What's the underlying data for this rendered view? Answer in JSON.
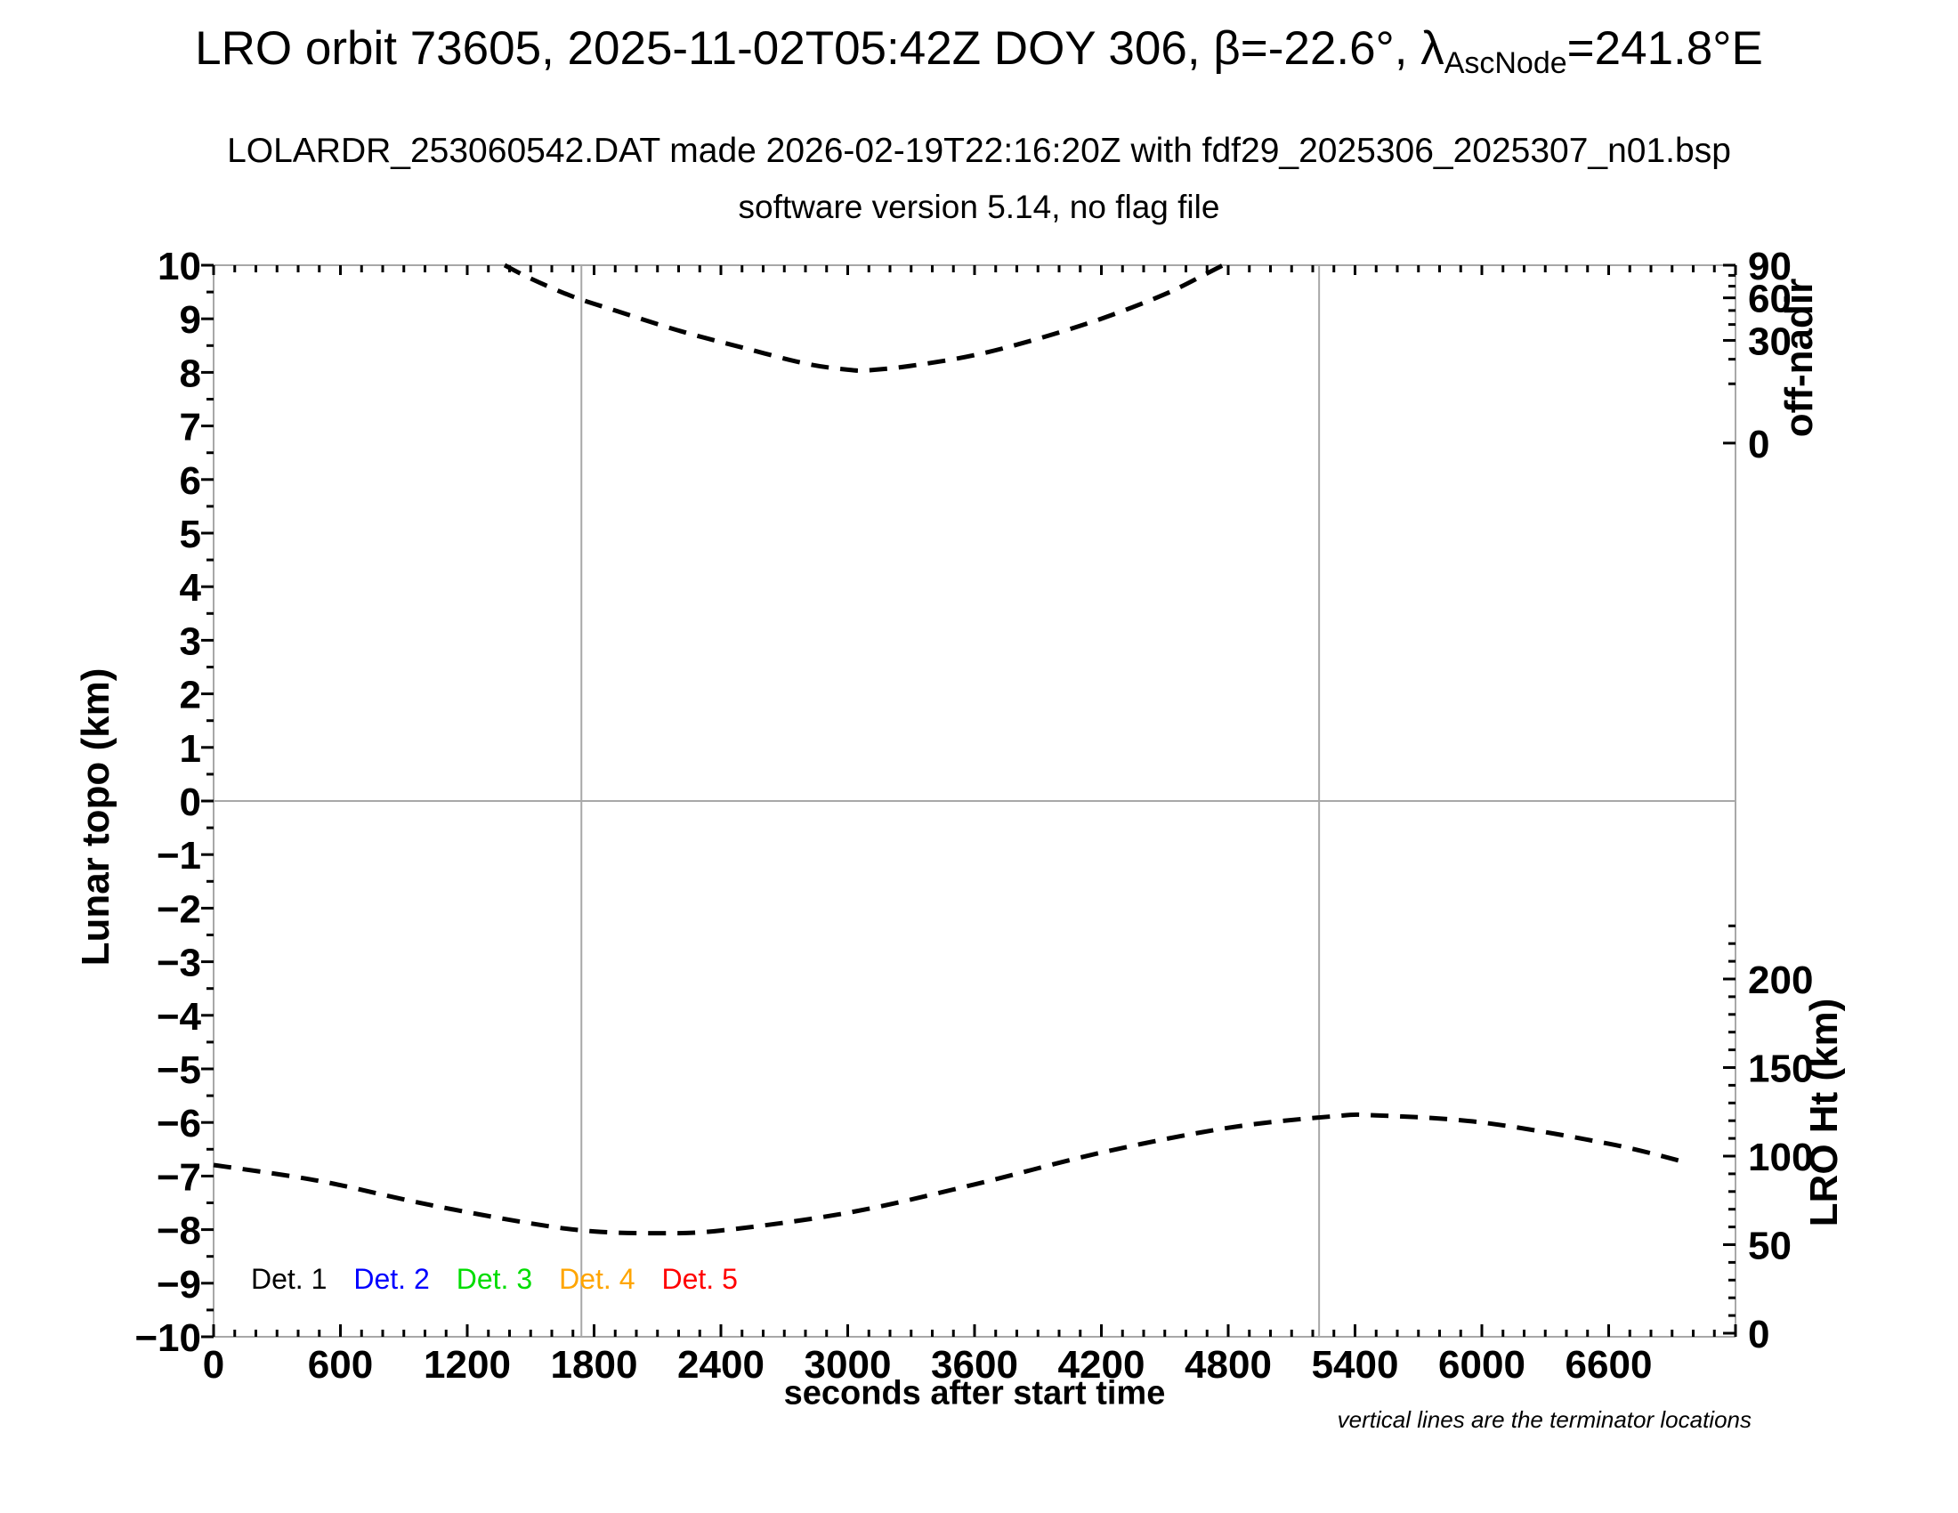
{
  "title": {
    "part1": "LRO orbit 73605, 2025-11-02T05:42Z DOY 306, β=-22.6°, λ",
    "subscript": "AscNode",
    "part2": "=241.8°E"
  },
  "subtitle": "LOLARDR_253060542.DAT made 2026-02-19T22:16:20Z with fdf29_2025306_2025307_n01.bsp",
  "subtitle2": "software version 5.14, no flag file",
  "footnote": "vertical lines are the terminator locations",
  "legend": [
    {
      "label": "Det. 1",
      "color": "#000000"
    },
    {
      "label": "Det. 2",
      "color": "#0000ff"
    },
    {
      "label": "Det. 3",
      "color": "#00dd00"
    },
    {
      "label": "Det. 4",
      "color": "#ffa500"
    },
    {
      "label": "Det. 5",
      "color": "#ff0000"
    }
  ],
  "chart_data": {
    "type": "line",
    "x_axis": {
      "label": "seconds after start time",
      "min": 0,
      "max": 7200,
      "major_step": 600,
      "minor_step": 100,
      "tick_labels": [
        "0",
        "600",
        "1200",
        "1800",
        "2400",
        "3000",
        "3600",
        "4200",
        "4800",
        "5400",
        "6000",
        "6600"
      ]
    },
    "y_axis_left": {
      "label": "Lunar topo (km)",
      "min": -10,
      "max": 10,
      "major_step": 1,
      "minor_step": 0.5,
      "tick_labels": [
        "10",
        "9",
        "8",
        "7",
        "6",
        "5",
        "4",
        "3",
        "2",
        "1",
        "0",
        "−1",
        "−2",
        "−3",
        "−4",
        "−5",
        "−6",
        "−7",
        "−8",
        "−9",
        "−10"
      ]
    },
    "y_axis_right_top": {
      "label": "off-nadir",
      "tick_values": [
        90,
        60,
        30,
        0
      ],
      "minor_tick_values": [
        10,
        20,
        40,
        50,
        70,
        80
      ]
    },
    "y_axis_right_bottom": {
      "label": "LRO Ht (km)",
      "tick_values": [
        200,
        150,
        100,
        50,
        0
      ],
      "minor_step": 10,
      "max": 230
    },
    "grid": {
      "zero_line_topo": 0
    },
    "terminator_lines_seconds": [
      1740,
      5230
    ],
    "series": [
      {
        "name": "off-nadir angle (deg)",
        "axis": "off_nadir",
        "line_style": "dashed",
        "color": "#000000",
        "points": [
          [
            1377,
            90
          ],
          [
            1500,
            77
          ],
          [
            1700,
            61
          ],
          [
            1900,
            50
          ],
          [
            2200,
            36
          ],
          [
            2500,
            26
          ],
          [
            2800,
            18
          ],
          [
            3000,
            15.3
          ],
          [
            3100,
            15.1
          ],
          [
            3300,
            17
          ],
          [
            3600,
            22
          ],
          [
            3900,
            31
          ],
          [
            4200,
            44
          ],
          [
            4500,
            63
          ],
          [
            4700,
            82
          ],
          [
            4775,
            90
          ]
        ]
      },
      {
        "name": "LRO height (km)",
        "axis": "lro_height",
        "line_style": "dashed",
        "color": "#000000",
        "points": [
          [
            0,
            95
          ],
          [
            500,
            86
          ],
          [
            1000,
            73
          ],
          [
            1500,
            62
          ],
          [
            1800,
            57.5
          ],
          [
            2100,
            56.5
          ],
          [
            2400,
            58
          ],
          [
            3000,
            68
          ],
          [
            3600,
            84
          ],
          [
            4200,
            102
          ],
          [
            4800,
            116
          ],
          [
            5300,
            122.5
          ],
          [
            5500,
            123
          ],
          [
            6000,
            119
          ],
          [
            6600,
            107
          ],
          [
            6950,
            97
          ]
        ]
      }
    ]
  },
  "colors": {
    "frame_gray": "#a8a8a8",
    "curve": "#000000"
  }
}
